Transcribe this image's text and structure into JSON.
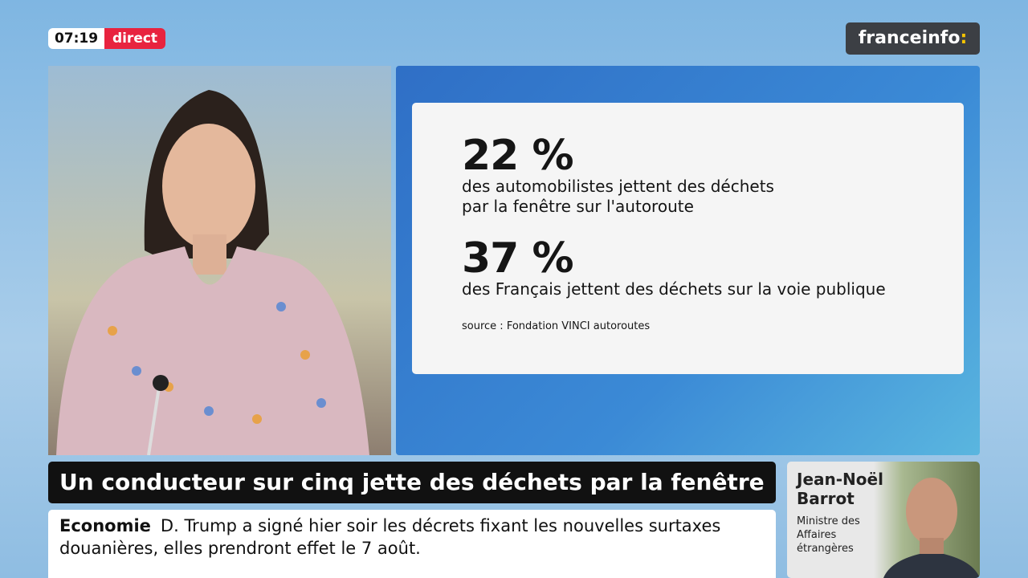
{
  "header": {
    "clock": "07:19",
    "live": "direct",
    "logo": "franceinfo",
    "logo_mark": ":"
  },
  "card": {
    "stats": [
      {
        "value": "22 %",
        "lines": [
          "des automobilistes jettent des déchets",
          "par la fenêtre sur l'autoroute"
        ]
      },
      {
        "value": "37 %",
        "lines": [
          "des Français jettent des déchets sur la voie publique"
        ]
      }
    ],
    "source": "source : Fondation VINCI autoroutes"
  },
  "headline": "Un conducteur sur cinq jette des déchets par la fenêtre",
  "ticker": {
    "category": "Economie",
    "text": "D. Trump a signé hier soir les décrets fixant les nouvelles surtaxes douanières, elles prendront effet le 7 août."
  },
  "guest": {
    "name_lines": [
      "Jean-Noël",
      "Barrot"
    ],
    "role_lines": [
      "Ministre des",
      "Affaires",
      "étrangères"
    ]
  }
}
